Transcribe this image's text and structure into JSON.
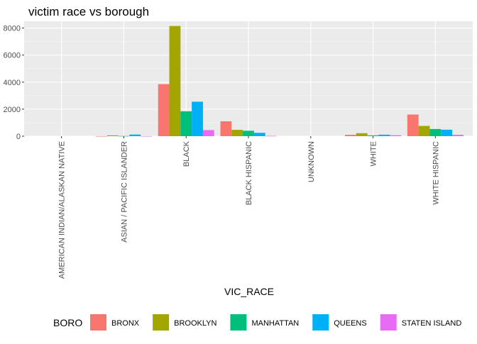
{
  "chart_data": {
    "type": "bar",
    "title": "victim race vs borough",
    "xlabel": "VIC_RACE",
    "ylabel": "",
    "ylim": [
      0,
      8500
    ],
    "yticks": [
      0,
      2000,
      4000,
      6000,
      8000
    ],
    "ytick_labels": [
      "0",
      "2000",
      "4000",
      "6000",
      "8000"
    ],
    "categories": [
      "AMERICAN INDIAN/ALASKAN NATIVE",
      "ASIAN / PACIFIC ISLANDER",
      "BLACK",
      "BLACK HISPANIC",
      "UNKNOWN",
      "WHITE",
      "WHITE HISPANIC"
    ],
    "legend_title": "BORO",
    "legend_position": "bottom",
    "grid": true,
    "series": [
      {
        "name": "BRONX",
        "color": "#F8766D",
        "values": [
          0,
          5,
          3850,
          1100,
          0,
          100,
          1600
        ]
      },
      {
        "name": "BROOKLYN",
        "color": "#A3A500",
        "values": [
          0,
          60,
          8150,
          470,
          0,
          220,
          760
        ]
      },
      {
        "name": "MANHATTAN",
        "color": "#00BF7D",
        "values": [
          0,
          15,
          1840,
          400,
          0,
          60,
          530
        ]
      },
      {
        "name": "QUEENS",
        "color": "#00B0F6",
        "values": [
          0,
          120,
          2550,
          250,
          0,
          110,
          480
        ]
      },
      {
        "name": "STATEN ISLAND",
        "color": "#E76BF3",
        "values": [
          0,
          5,
          450,
          20,
          0,
          70,
          100
        ]
      }
    ]
  }
}
